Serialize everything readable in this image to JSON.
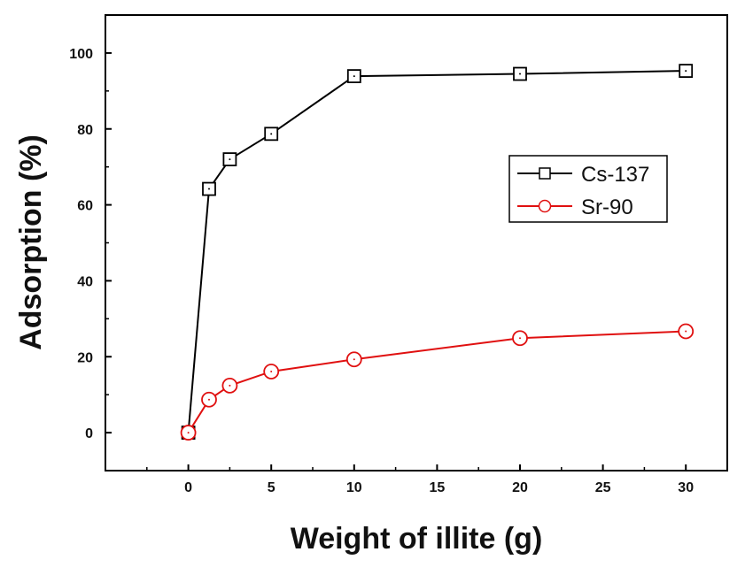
{
  "chart_data": {
    "type": "line",
    "title": "",
    "xlabel": "Weight of illite (g)",
    "ylabel": "Adsorption (%)",
    "xlim": [
      -5,
      32.5
    ],
    "ylim": [
      -10,
      110
    ],
    "x_ticks": [
      0,
      5,
      10,
      15,
      20,
      25,
      30
    ],
    "y_ticks": [
      0,
      20,
      40,
      60,
      80,
      100
    ],
    "grid": false,
    "legend_position": "right",
    "series": [
      {
        "name": "Cs-137",
        "color": "#000000",
        "marker": "square",
        "x": [
          0,
          1.25,
          2.5,
          5,
          10,
          20,
          30
        ],
        "y": [
          0,
          64.2,
          72,
          78.7,
          93.9,
          94.5,
          95.3
        ]
      },
      {
        "name": "Sr-90",
        "color": "#e01010",
        "marker": "circle",
        "x": [
          0,
          1.25,
          2.5,
          5,
          10,
          20,
          30
        ],
        "y": [
          0,
          8.7,
          12.4,
          16.1,
          19.3,
          24.9,
          26.7
        ]
      }
    ]
  }
}
